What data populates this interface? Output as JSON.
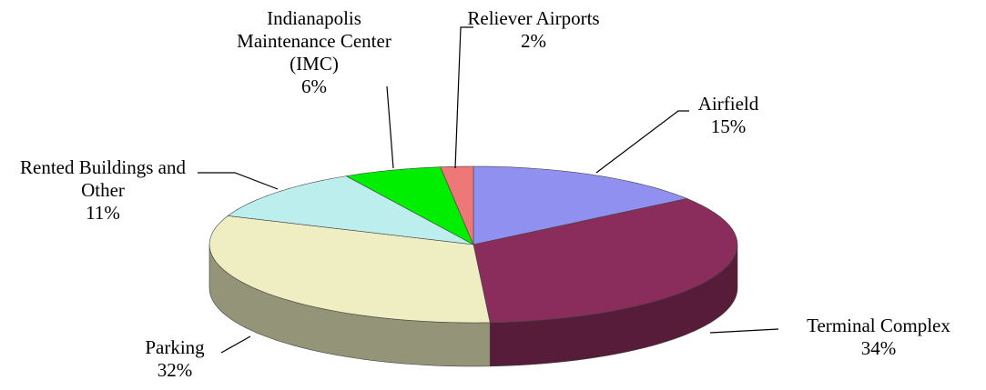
{
  "chart_data": {
    "type": "pie3d",
    "categories": [
      "Airfield",
      "Terminal Complex",
      "Parking",
      "Rented Buildings and Other",
      "Indianapolis Maintenance Center (IMC)",
      "Reliever Airports"
    ],
    "values": [
      15,
      34,
      32,
      11,
      6,
      2
    ],
    "value_labels": [
      "15%",
      "34%",
      "32%",
      "11%",
      "6%",
      "2%"
    ],
    "colors": [
      "#9090f0",
      "#8b2d5c",
      "#eeeec2",
      "#bdeeee",
      "#00ee00",
      "#ee7777"
    ]
  }
}
